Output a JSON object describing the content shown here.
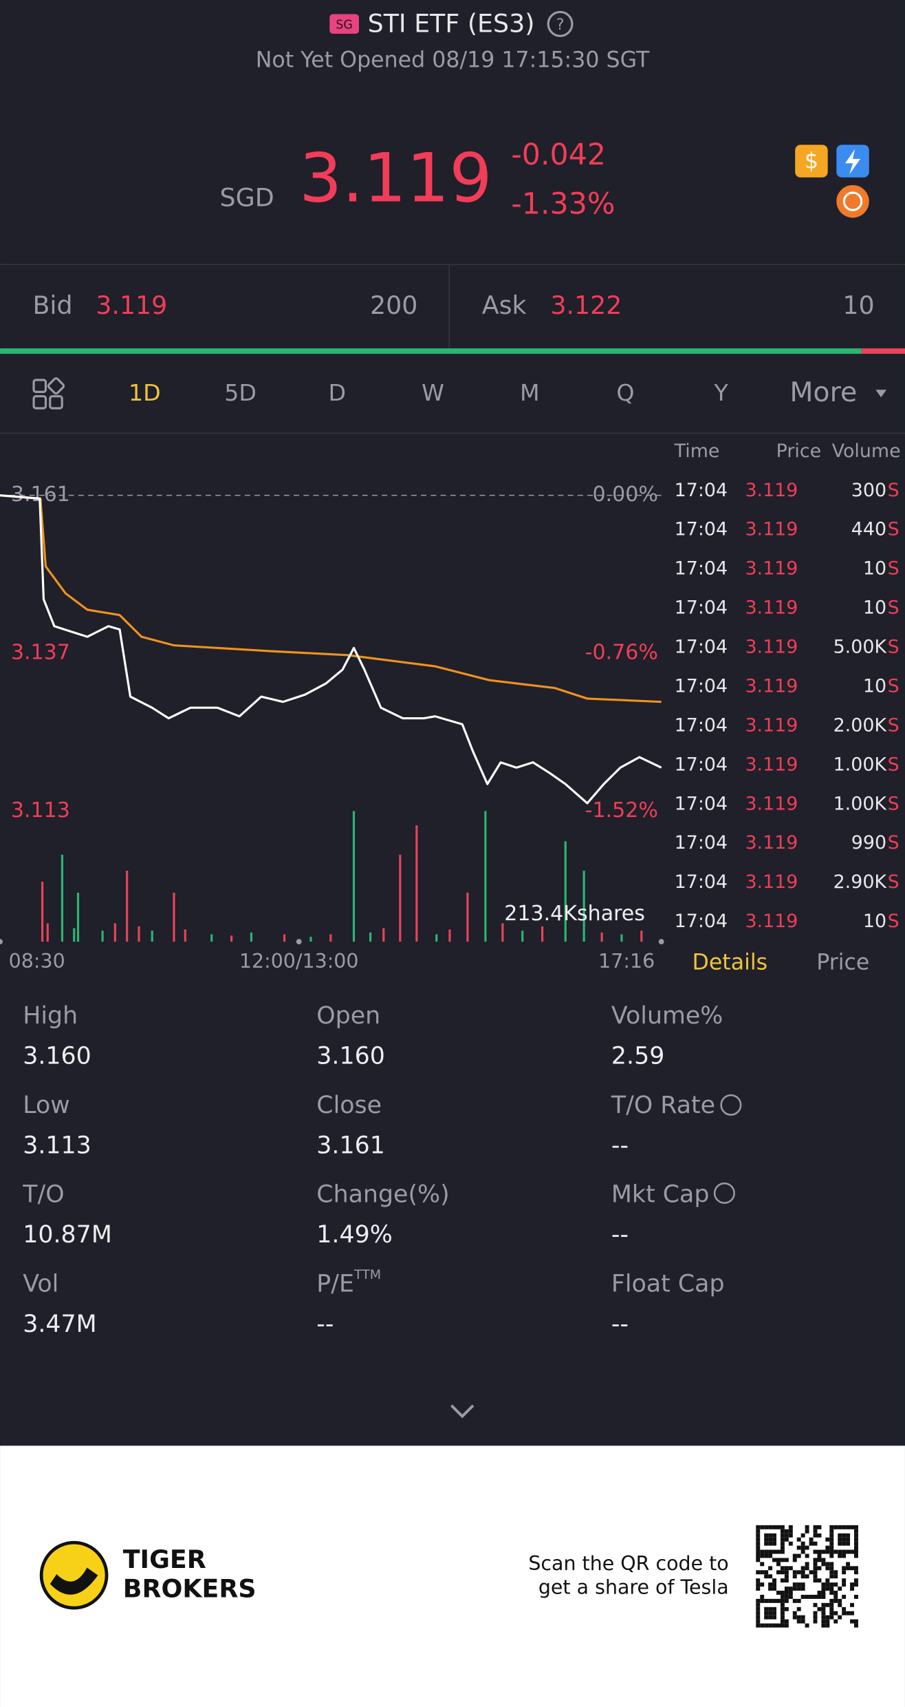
{
  "header": {
    "market_badge": "SG",
    "title": "STI ETF (ES3)",
    "status": "Not Yet Opened 08/19 17:15:30 SGT"
  },
  "quote": {
    "currency": "SGD",
    "price": "3.119",
    "change": "-0.042",
    "change_pct": "-1.33%"
  },
  "orderbook": {
    "bid_label": "Bid",
    "bid": "3.119",
    "bid_size": "200",
    "ask_label": "Ask",
    "ask": "3.122",
    "ask_size": "10"
  },
  "tabs": [
    "1D",
    "5D",
    "D",
    "W",
    "M",
    "Q",
    "Y",
    "More"
  ],
  "chart_data": [
    {
      "type": "line",
      "xlim": [
        0,
        100
      ],
      "xticks": [
        {
          "value": 0,
          "label": "08:30"
        },
        {
          "value": 45.2,
          "label": "12:00/13:00"
        },
        {
          "value": 100,
          "label": "17:16"
        }
      ],
      "ylim": [
        3.113,
        3.161
      ],
      "yticks": [
        3.113,
        3.137,
        3.161
      ],
      "y2lim": [
        -1.52,
        0
      ],
      "y2ticks": [
        {
          "value": -1.52,
          "label": "-1.52%"
        },
        {
          "value": -0.76,
          "label": "-0.76%"
        },
        {
          "value": 0,
          "label": "0.00%"
        }
      ],
      "series": [
        {
          "color": "#ffffff",
          "x": [
            0,
            6,
            6.6,
            8.2,
            10.7,
            13.2,
            16.4,
            18.1,
            19.7,
            23,
            25.5,
            28.8,
            32.9,
            36.2,
            39.5,
            42.8,
            46.1,
            49.3,
            51.8,
            53.5,
            55.1,
            57.6,
            60.9,
            64.1,
            65.8,
            69.9,
            71.5,
            73.7,
            75.7,
            78.1,
            80.6,
            83.1,
            85.5,
            88.8,
            91.3,
            93.8,
            96.7,
            100
          ],
          "values": [
            3.161,
            3.1605,
            3.1452,
            3.1411,
            3.1403,
            3.1395,
            3.1411,
            3.1406,
            3.1304,
            3.1287,
            3.1271,
            3.1287,
            3.1287,
            3.1274,
            3.1304,
            3.1296,
            3.1307,
            3.1324,
            3.1345,
            3.1378,
            3.1345,
            3.1287,
            3.1271,
            3.1271,
            3.1274,
            3.1262,
            3.1221,
            3.1171,
            3.1204,
            3.1196,
            3.1204,
            3.1188,
            3.1171,
            3.1142,
            3.1171,
            3.1196,
            3.1212,
            3.1196
          ]
        },
        {
          "color": "#f0921e",
          "x": [
            0,
            6.1,
            6.9,
            9.9,
            13.2,
            18.1,
            21.4,
            26.3,
            41.1,
            52.6,
            65.8,
            74,
            83.9,
            88.8,
            100
          ],
          "values": [
            3.161,
            3.1605,
            3.1502,
            3.1461,
            3.1436,
            3.1428,
            3.1395,
            3.1382,
            3.1373,
            3.1367,
            3.135,
            3.1329,
            3.1317,
            3.1301,
            3.1296
          ]
        }
      ]
    },
    {
      "type": "bar",
      "volume_label": "213.4Kshares",
      "xlim": [
        0,
        100
      ],
      "ylim": [
        0,
        213.4
      ],
      "x": [
        6.4,
        7.2,
        9.4,
        11.2,
        11.8,
        15.5,
        17.4,
        19.2,
        21,
        23,
        26.3,
        28,
        32,
        35,
        38,
        43,
        47,
        50,
        53.5,
        56,
        58,
        60.5,
        63,
        66,
        68,
        70.7,
        73.4,
        76,
        79,
        82,
        85.5,
        88.3,
        91,
        94,
        97
      ],
      "values": [
        98,
        30,
        142,
        22,
        80,
        18,
        30,
        116,
        25,
        18,
        80,
        20,
        12,
        10,
        15,
        12,
        8,
        12,
        213.4,
        15,
        22,
        142,
        190,
        12,
        20,
        80,
        213.4,
        30,
        18,
        25,
        164,
        116,
        15,
        12,
        18
      ],
      "colors": [
        "#e8445a",
        "#e8445a",
        "#2bb673",
        "#2bb673",
        "#2bb673",
        "#2bb673",
        "#e8445a",
        "#e8445a",
        "#e8445a",
        "#2bb673",
        "#e8445a",
        "#e8445a",
        "#2bb673",
        "#e8445a",
        "#2bb673",
        "#e8445a",
        "#2bb673",
        "#e8445a",
        "#2bb673",
        "#2bb673",
        "#e8445a",
        "#e8445a",
        "#e8445a",
        "#2bb673",
        "#e8445a",
        "#e8445a",
        "#2bb673",
        "#e8445a",
        "#2bb673",
        "#e8445a",
        "#2bb673",
        "#2bb673",
        "#e8445a",
        "#2bb673",
        "#e8445a"
      ]
    }
  ],
  "trades": {
    "headers": [
      "Time",
      "Price",
      "Volume"
    ],
    "rows": [
      {
        "time": "17:04",
        "price": "3.119",
        "volume": "300",
        "side": "S"
      },
      {
        "time": "17:04",
        "price": "3.119",
        "volume": "440",
        "side": "S"
      },
      {
        "time": "17:04",
        "price": "3.119",
        "volume": "10",
        "side": "S"
      },
      {
        "time": "17:04",
        "price": "3.119",
        "volume": "10",
        "side": "S"
      },
      {
        "time": "17:04",
        "price": "3.119",
        "volume": "5.00K",
        "side": "S"
      },
      {
        "time": "17:04",
        "price": "3.119",
        "volume": "10",
        "side": "S"
      },
      {
        "time": "17:04",
        "price": "3.119",
        "volume": "2.00K",
        "side": "S"
      },
      {
        "time": "17:04",
        "price": "3.119",
        "volume": "1.00K",
        "side": "S"
      },
      {
        "time": "17:04",
        "price": "3.119",
        "volume": "1.00K",
        "side": "S"
      },
      {
        "time": "17:04",
        "price": "3.119",
        "volume": "990",
        "side": "S"
      },
      {
        "time": "17:04",
        "price": "3.119",
        "volume": "2.90K",
        "side": "S"
      },
      {
        "time": "17:04",
        "price": "3.119",
        "volume": "10",
        "side": "S"
      }
    ],
    "tabs": [
      "Details",
      "Price"
    ]
  },
  "stats": [
    {
      "label": "High",
      "value": "3.160"
    },
    {
      "label": "Open",
      "value": "3.160"
    },
    {
      "label": "Volume%",
      "value": "2.59"
    },
    {
      "label": "Low",
      "value": "3.113"
    },
    {
      "label": "Close",
      "value": "3.161"
    },
    {
      "label": "T/O Rate",
      "value": "--"
    },
    {
      "label": "T/O",
      "value": "10.87M"
    },
    {
      "label": "Change(%)",
      "value": "1.49%"
    },
    {
      "label": "Mkt Cap",
      "value": "--"
    },
    {
      "label": "Vol",
      "value": "3.47M"
    },
    {
      "label": "P/E",
      "sup": "TTM",
      "value": "--"
    },
    {
      "label": "Float Cap",
      "value": "--"
    }
  ],
  "footer": {
    "brand_line1": "TIGER",
    "brand_line2": "BROKERS",
    "promo_line1": "Scan the QR code to",
    "promo_line2": "get a share of Tesla"
  }
}
